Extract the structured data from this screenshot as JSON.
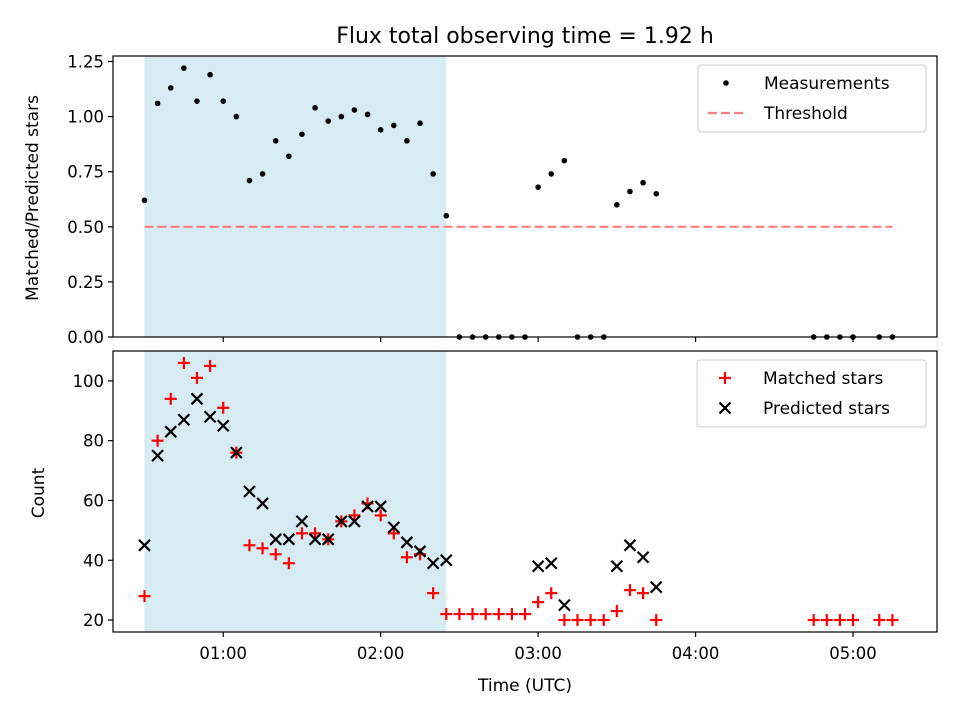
{
  "title": "Flux total observing time = 1.92 h",
  "colors": {
    "shade": "#add8e6",
    "measurement": "#000000",
    "threshold": "#ff7f7f",
    "matched": "#ff0000",
    "predicted": "#000000"
  },
  "chart_data": [
    {
      "type": "scatter",
      "panel": "top",
      "title": "Flux total observing time = 1.92 h",
      "xlabel": "",
      "ylabel": "Matched/Predicted stars",
      "xlim": [
        "00:18",
        "05:32"
      ],
      "ylim": [
        0,
        1.275
      ],
      "yticks": [
        0.0,
        0.25,
        0.5,
        0.75,
        1.0,
        1.25
      ],
      "ytick_labels": [
        "0.00",
        "0.25",
        "0.50",
        "0.75",
        "1.00",
        "1.25"
      ],
      "xticks": [
        "01:00",
        "02:00",
        "03:00",
        "04:00",
        "05:00"
      ],
      "shaded_span": [
        "00:30",
        "02:25"
      ],
      "legend": {
        "location": "upper right",
        "entries": [
          "Measurements",
          "Threshold"
        ]
      },
      "series": [
        {
          "name": "Measurements",
          "marker": "dot",
          "points": [
            [
              "00:30",
              0.62
            ],
            [
              "00:35",
              1.06
            ],
            [
              "00:40",
              1.13
            ],
            [
              "00:45",
              1.22
            ],
            [
              "00:50",
              1.07
            ],
            [
              "00:55",
              1.19
            ],
            [
              "01:00",
              1.07
            ],
            [
              "01:05",
              1.0
            ],
            [
              "01:10",
              0.71
            ],
            [
              "01:15",
              0.74
            ],
            [
              "01:20",
              0.89
            ],
            [
              "01:25",
              0.82
            ],
            [
              "01:30",
              0.92
            ],
            [
              "01:35",
              1.04
            ],
            [
              "01:40",
              0.98
            ],
            [
              "01:45",
              1.0
            ],
            [
              "01:50",
              1.03
            ],
            [
              "01:55",
              1.01
            ],
            [
              "02:00",
              0.94
            ],
            [
              "02:05",
              0.96
            ],
            [
              "02:10",
              0.89
            ],
            [
              "02:15",
              0.97
            ],
            [
              "02:20",
              0.74
            ],
            [
              "02:25",
              0.55
            ],
            [
              "02:30",
              0.0
            ],
            [
              "02:35",
              0.0
            ],
            [
              "02:40",
              0.0
            ],
            [
              "02:45",
              0.0
            ],
            [
              "02:50",
              0.0
            ],
            [
              "02:55",
              0.0
            ],
            [
              "03:00",
              0.68
            ],
            [
              "03:05",
              0.74
            ],
            [
              "03:10",
              0.8
            ],
            [
              "03:15",
              0.0
            ],
            [
              "03:20",
              0.0
            ],
            [
              "03:25",
              0.0
            ],
            [
              "03:30",
              0.6
            ],
            [
              "03:35",
              0.66
            ],
            [
              "03:40",
              0.7
            ],
            [
              "03:45",
              0.65
            ],
            [
              "04:45",
              0.0
            ],
            [
              "04:50",
              0.0
            ],
            [
              "04:55",
              0.0
            ],
            [
              "05:00",
              0.0
            ],
            [
              "05:10",
              0.0
            ],
            [
              "05:15",
              0.0
            ]
          ]
        },
        {
          "name": "Threshold",
          "marker": "dashed-line",
          "points": [
            [
              "00:30",
              0.5
            ],
            [
              "05:15",
              0.5
            ]
          ]
        }
      ]
    },
    {
      "type": "scatter",
      "panel": "bottom",
      "title": "",
      "xlabel": "Time (UTC)",
      "ylabel": "Count",
      "xlim": [
        "00:18",
        "05:32"
      ],
      "ylim": [
        16,
        110
      ],
      "yticks": [
        20,
        40,
        60,
        80,
        100
      ],
      "ytick_labels": [
        "20",
        "40",
        "60",
        "80",
        "100"
      ],
      "xticks": [
        "01:00",
        "02:00",
        "03:00",
        "04:00",
        "05:00"
      ],
      "shaded_span": [
        "00:30",
        "02:25"
      ],
      "legend": {
        "location": "upper right",
        "entries": [
          "Matched stars",
          "Predicted stars"
        ]
      },
      "series": [
        {
          "name": "Matched stars",
          "marker": "plus",
          "points": [
            [
              "00:30",
              28
            ],
            [
              "00:35",
              80
            ],
            [
              "00:40",
              94
            ],
            [
              "00:45",
              106
            ],
            [
              "00:50",
              101
            ],
            [
              "00:55",
              105
            ],
            [
              "01:00",
              91
            ],
            [
              "01:05",
              76
            ],
            [
              "01:10",
              45
            ],
            [
              "01:15",
              44
            ],
            [
              "01:20",
              42
            ],
            [
              "01:25",
              39
            ],
            [
              "01:30",
              49
            ],
            [
              "01:35",
              49
            ],
            [
              "01:40",
              47
            ],
            [
              "01:45",
              53
            ],
            [
              "01:50",
              55
            ],
            [
              "01:55",
              59
            ],
            [
              "02:00",
              55
            ],
            [
              "02:05",
              49
            ],
            [
              "02:10",
              41
            ],
            [
              "02:15",
              42
            ],
            [
              "02:20",
              29
            ],
            [
              "02:25",
              22
            ],
            [
              "02:30",
              22
            ],
            [
              "02:35",
              22
            ],
            [
              "02:40",
              22
            ],
            [
              "02:45",
              22
            ],
            [
              "02:50",
              22
            ],
            [
              "02:55",
              22
            ],
            [
              "03:00",
              26
            ],
            [
              "03:05",
              29
            ],
            [
              "03:10",
              20
            ],
            [
              "03:15",
              20
            ],
            [
              "03:20",
              20
            ],
            [
              "03:25",
              20
            ],
            [
              "03:30",
              23
            ],
            [
              "03:35",
              30
            ],
            [
              "03:40",
              29
            ],
            [
              "03:45",
              20
            ],
            [
              "04:45",
              20
            ],
            [
              "04:50",
              20
            ],
            [
              "04:55",
              20
            ],
            [
              "05:00",
              20
            ],
            [
              "05:10",
              20
            ],
            [
              "05:15",
              20
            ]
          ]
        },
        {
          "name": "Predicted stars",
          "marker": "x",
          "points": [
            [
              "00:30",
              45
            ],
            [
              "00:35",
              75
            ],
            [
              "00:40",
              83
            ],
            [
              "00:45",
              87
            ],
            [
              "00:50",
              94
            ],
            [
              "00:55",
              88
            ],
            [
              "01:00",
              85
            ],
            [
              "01:05",
              76
            ],
            [
              "01:10",
              63
            ],
            [
              "01:15",
              59
            ],
            [
              "01:20",
              47
            ],
            [
              "01:25",
              47
            ],
            [
              "01:30",
              53
            ],
            [
              "01:35",
              47
            ],
            [
              "01:40",
              47
            ],
            [
              "01:45",
              53
            ],
            [
              "01:50",
              53
            ],
            [
              "01:55",
              58
            ],
            [
              "02:00",
              58
            ],
            [
              "02:05",
              51
            ],
            [
              "02:10",
              46
            ],
            [
              "02:15",
              43
            ],
            [
              "02:20",
              39
            ],
            [
              "02:25",
              40
            ],
            [
              "03:00",
              38
            ],
            [
              "03:05",
              39
            ],
            [
              "03:10",
              25
            ],
            [
              "03:30",
              38
            ],
            [
              "03:35",
              45
            ],
            [
              "03:40",
              41
            ],
            [
              "03:45",
              31
            ]
          ]
        }
      ]
    }
  ]
}
